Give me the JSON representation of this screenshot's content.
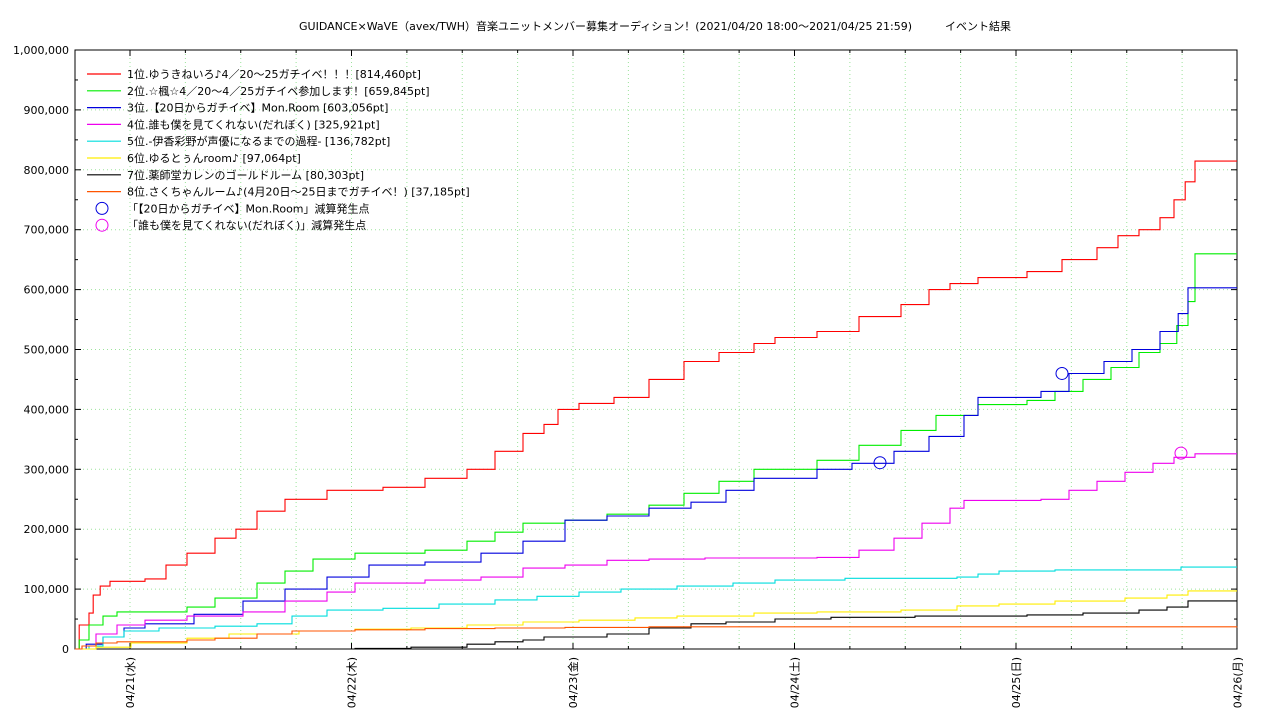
{
  "chart_data": {
    "type": "line",
    "title": "GUIDANCE×WaVE（avex/TWH）音楽ユニットメンバー募集オーディション！(2021/04/20 18:00〜2021/04/25 21:59)　　　イベント結果",
    "xlabel": "",
    "ylabel": "",
    "ylim": [
      0,
      1000000
    ],
    "xlim": [
      "04/20 18:00",
      "04/26 00:00"
    ],
    "grid": true,
    "legend_position": "top-left",
    "y_ticks": [
      "0",
      "100,000",
      "200,000",
      "300,000",
      "400,000",
      "500,000",
      "600,000",
      "700,000",
      "800,000",
      "900,000",
      "1,000,000"
    ],
    "x_ticks": [
      {
        "label": "04/21(水)",
        "day": 1
      },
      {
        "label": "04/22(木)",
        "day": 2
      },
      {
        "label": "04/23(金)",
        "day": 3
      },
      {
        "label": "04/24(土)",
        "day": 4
      },
      {
        "label": "04/25(日)",
        "day": 5
      },
      {
        "label": "04/26(月)",
        "day": 6
      }
    ],
    "series": [
      {
        "name": "1位.ゆうきねいろ♪4／20〜25ガチイベ！！！[814,460pt]",
        "color": "#ff0000",
        "points": [
          [
            0,
            0
          ],
          [
            0.03,
            40000
          ],
          [
            0.1,
            60000
          ],
          [
            0.13,
            90000
          ],
          [
            0.18,
            105000
          ],
          [
            0.25,
            113000
          ],
          [
            0.5,
            117000
          ],
          [
            0.65,
            140000
          ],
          [
            0.8,
            160000
          ],
          [
            1.0,
            185000
          ],
          [
            1.15,
            200000
          ],
          [
            1.3,
            230000
          ],
          [
            1.5,
            250000
          ],
          [
            1.8,
            265000
          ],
          [
            2.2,
            270000
          ],
          [
            2.5,
            285000
          ],
          [
            2.8,
            300000
          ],
          [
            3.0,
            330000
          ],
          [
            3.2,
            360000
          ],
          [
            3.35,
            375000
          ],
          [
            3.45,
            400000
          ],
          [
            3.6,
            410000
          ],
          [
            3.85,
            420000
          ],
          [
            4.1,
            450000
          ],
          [
            4.35,
            480000
          ],
          [
            4.6,
            495000
          ],
          [
            4.85,
            510000
          ],
          [
            5.0,
            520000
          ],
          [
            5.3,
            530000
          ],
          [
            5.6,
            555000
          ],
          [
            5.9,
            575000
          ],
          [
            6.1,
            600000
          ],
          [
            6.25,
            610000
          ],
          [
            6.45,
            620000
          ],
          [
            6.8,
            630000
          ],
          [
            7.05,
            650000
          ],
          [
            7.3,
            670000
          ],
          [
            7.45,
            690000
          ],
          [
            7.6,
            700000
          ],
          [
            7.75,
            720000
          ],
          [
            7.85,
            750000
          ],
          [
            7.93,
            780000
          ],
          [
            8.0,
            814460
          ],
          [
            8.3,
            814460
          ]
        ]
      },
      {
        "name": "2位.☆楓☆4／20〜4／25ガチイベ参加します！[659,845pt]",
        "color": "#00ee00",
        "points": [
          [
            0,
            0
          ],
          [
            0.03,
            15000
          ],
          [
            0.1,
            40000
          ],
          [
            0.2,
            55000
          ],
          [
            0.3,
            62000
          ],
          [
            0.8,
            70000
          ],
          [
            1.0,
            85000
          ],
          [
            1.3,
            110000
          ],
          [
            1.5,
            130000
          ],
          [
            1.7,
            150000
          ],
          [
            2.0,
            160000
          ],
          [
            2.5,
            165000
          ],
          [
            2.8,
            180000
          ],
          [
            3.0,
            195000
          ],
          [
            3.2,
            210000
          ],
          [
            3.5,
            215000
          ],
          [
            3.8,
            225000
          ],
          [
            4.1,
            240000
          ],
          [
            4.35,
            260000
          ],
          [
            4.6,
            280000
          ],
          [
            4.85,
            300000
          ],
          [
            5.3,
            315000
          ],
          [
            5.6,
            340000
          ],
          [
            5.9,
            365000
          ],
          [
            6.15,
            390000
          ],
          [
            6.45,
            408000
          ],
          [
            6.8,
            415000
          ],
          [
            7.0,
            430000
          ],
          [
            7.2,
            450000
          ],
          [
            7.4,
            470000
          ],
          [
            7.6,
            495000
          ],
          [
            7.75,
            510000
          ],
          [
            7.87,
            540000
          ],
          [
            7.95,
            580000
          ],
          [
            8.0,
            659845
          ],
          [
            8.3,
            659845
          ]
        ]
      },
      {
        "name": "3位.【20日からガチイベ】Mon.Room [603,056pt]",
        "color": "#0000dd",
        "points": [
          [
            0,
            0
          ],
          [
            0.08,
            8000
          ],
          [
            0.2,
            20000
          ],
          [
            0.35,
            35000
          ],
          [
            0.5,
            42000
          ],
          [
            0.85,
            58000
          ],
          [
            1.2,
            80000
          ],
          [
            1.5,
            100000
          ],
          [
            1.8,
            120000
          ],
          [
            2.1,
            140000
          ],
          [
            2.5,
            145000
          ],
          [
            2.9,
            160000
          ],
          [
            3.2,
            180000
          ],
          [
            3.5,
            215000
          ],
          [
            3.8,
            222000
          ],
          [
            4.1,
            235000
          ],
          [
            4.4,
            245000
          ],
          [
            4.65,
            265000
          ],
          [
            4.85,
            285000
          ],
          [
            5.3,
            300000
          ],
          [
            5.55,
            310000
          ],
          [
            5.85,
            330000
          ],
          [
            6.1,
            355000
          ],
          [
            6.35,
            390000
          ],
          [
            6.45,
            420000
          ],
          [
            6.9,
            430000
          ],
          [
            7.1,
            460000
          ],
          [
            7.35,
            480000
          ],
          [
            7.55,
            500000
          ],
          [
            7.75,
            530000
          ],
          [
            7.88,
            560000
          ],
          [
            7.95,
            603056
          ],
          [
            8.3,
            603056
          ]
        ]
      },
      {
        "name": "4位.誰も僕を見てくれない(だれぼく) [325,921pt]",
        "color": "#ee00ee",
        "points": [
          [
            0,
            0
          ],
          [
            0.05,
            5000
          ],
          [
            0.15,
            25000
          ],
          [
            0.3,
            40000
          ],
          [
            0.5,
            48000
          ],
          [
            0.8,
            55000
          ],
          [
            1.2,
            62000
          ],
          [
            1.5,
            80000
          ],
          [
            1.8,
            95000
          ],
          [
            2.0,
            110000
          ],
          [
            2.5,
            115000
          ],
          [
            2.9,
            120000
          ],
          [
            3.2,
            135000
          ],
          [
            3.5,
            140000
          ],
          [
            3.8,
            148000
          ],
          [
            4.1,
            150000
          ],
          [
            4.5,
            152000
          ],
          [
            5.3,
            153000
          ],
          [
            5.6,
            165000
          ],
          [
            5.85,
            185000
          ],
          [
            6.05,
            210000
          ],
          [
            6.25,
            235000
          ],
          [
            6.35,
            248000
          ],
          [
            6.9,
            250000
          ],
          [
            7.1,
            265000
          ],
          [
            7.3,
            280000
          ],
          [
            7.5,
            295000
          ],
          [
            7.7,
            310000
          ],
          [
            7.85,
            320000
          ],
          [
            8.0,
            325921
          ],
          [
            8.3,
            325921
          ]
        ]
      },
      {
        "name": "5位.-伊香彩野が声優になるまでの過程- [136,782pt]",
        "color": "#00dddd",
        "points": [
          [
            0,
            0
          ],
          [
            0.1,
            5000
          ],
          [
            0.2,
            20000
          ],
          [
            0.35,
            30000
          ],
          [
            0.6,
            35000
          ],
          [
            1.0,
            38000
          ],
          [
            1.3,
            42000
          ],
          [
            1.55,
            55000
          ],
          [
            1.8,
            65000
          ],
          [
            2.2,
            68000
          ],
          [
            2.6,
            75000
          ],
          [
            3.0,
            82000
          ],
          [
            3.3,
            88000
          ],
          [
            3.6,
            95000
          ],
          [
            3.9,
            100000
          ],
          [
            4.3,
            105000
          ],
          [
            4.7,
            110000
          ],
          [
            5.0,
            115000
          ],
          [
            5.5,
            118000
          ],
          [
            6.3,
            120000
          ],
          [
            6.45,
            125000
          ],
          [
            6.6,
            130000
          ],
          [
            7.0,
            132000
          ],
          [
            7.9,
            136782
          ],
          [
            8.3,
            136782
          ]
        ]
      },
      {
        "name": "6位.ゆるとぅんroom♪ [97,064pt]",
        "color": "#ffee00",
        "points": [
          [
            0,
            0
          ],
          [
            0.15,
            3000
          ],
          [
            0.4,
            10000
          ],
          [
            0.8,
            18000
          ],
          [
            1.1,
            25000
          ],
          [
            1.6,
            30000
          ],
          [
            2.0,
            33000
          ],
          [
            2.4,
            35000
          ],
          [
            2.8,
            40000
          ],
          [
            3.2,
            45000
          ],
          [
            3.6,
            48000
          ],
          [
            4.0,
            52000
          ],
          [
            4.3,
            55000
          ],
          [
            4.85,
            60000
          ],
          [
            5.3,
            62000
          ],
          [
            5.9,
            65000
          ],
          [
            6.3,
            72000
          ],
          [
            6.6,
            75000
          ],
          [
            7.0,
            80000
          ],
          [
            7.5,
            85000
          ],
          [
            7.8,
            90000
          ],
          [
            7.95,
            97064
          ],
          [
            8.3,
            97064
          ]
        ]
      },
      {
        "name": "7位.薬師堂カレンのゴールドルーム [80,303pt]",
        "color": "#000000",
        "points": [
          [
            1.8,
            0
          ],
          [
            2.0,
            1000
          ],
          [
            2.4,
            3000
          ],
          [
            2.8,
            8000
          ],
          [
            3.0,
            12000
          ],
          [
            3.2,
            15000
          ],
          [
            3.35,
            20000
          ],
          [
            3.8,
            25000
          ],
          [
            4.1,
            35000
          ],
          [
            4.4,
            42000
          ],
          [
            4.65,
            45000
          ],
          [
            5.0,
            50000
          ],
          [
            5.4,
            53000
          ],
          [
            6.0,
            55000
          ],
          [
            6.8,
            57000
          ],
          [
            7.2,
            60000
          ],
          [
            7.6,
            65000
          ],
          [
            7.8,
            70000
          ],
          [
            7.95,
            80303
          ],
          [
            8.3,
            80303
          ]
        ]
      },
      {
        "name": "8位.さくちゃんルーム♪(4月20日〜25日までガチイベ！) [37,185pt]",
        "color": "#ff5500",
        "points": [
          [
            0,
            0
          ],
          [
            0.05,
            5000
          ],
          [
            0.15,
            10000
          ],
          [
            0.3,
            12000
          ],
          [
            0.8,
            15000
          ],
          [
            1.0,
            18000
          ],
          [
            1.3,
            25000
          ],
          [
            1.55,
            30000
          ],
          [
            2.0,
            32000
          ],
          [
            2.5,
            34000
          ],
          [
            3.0,
            35000
          ],
          [
            3.5,
            36000
          ],
          [
            4.1,
            37000
          ],
          [
            8.3,
            37185
          ]
        ]
      }
    ],
    "markers": [
      {
        "name": "「【20日からガチイベ】Mon.Room」減算発生点",
        "color": "#0000dd",
        "points": [
          [
            5.75,
            311000
          ],
          [
            7.05,
            460000
          ]
        ]
      },
      {
        "name": "「誰も僕を見てくれない(だれぼく)」減算発生点",
        "color": "#ee00ee",
        "points": [
          [
            7.9,
            327000
          ]
        ]
      }
    ]
  }
}
